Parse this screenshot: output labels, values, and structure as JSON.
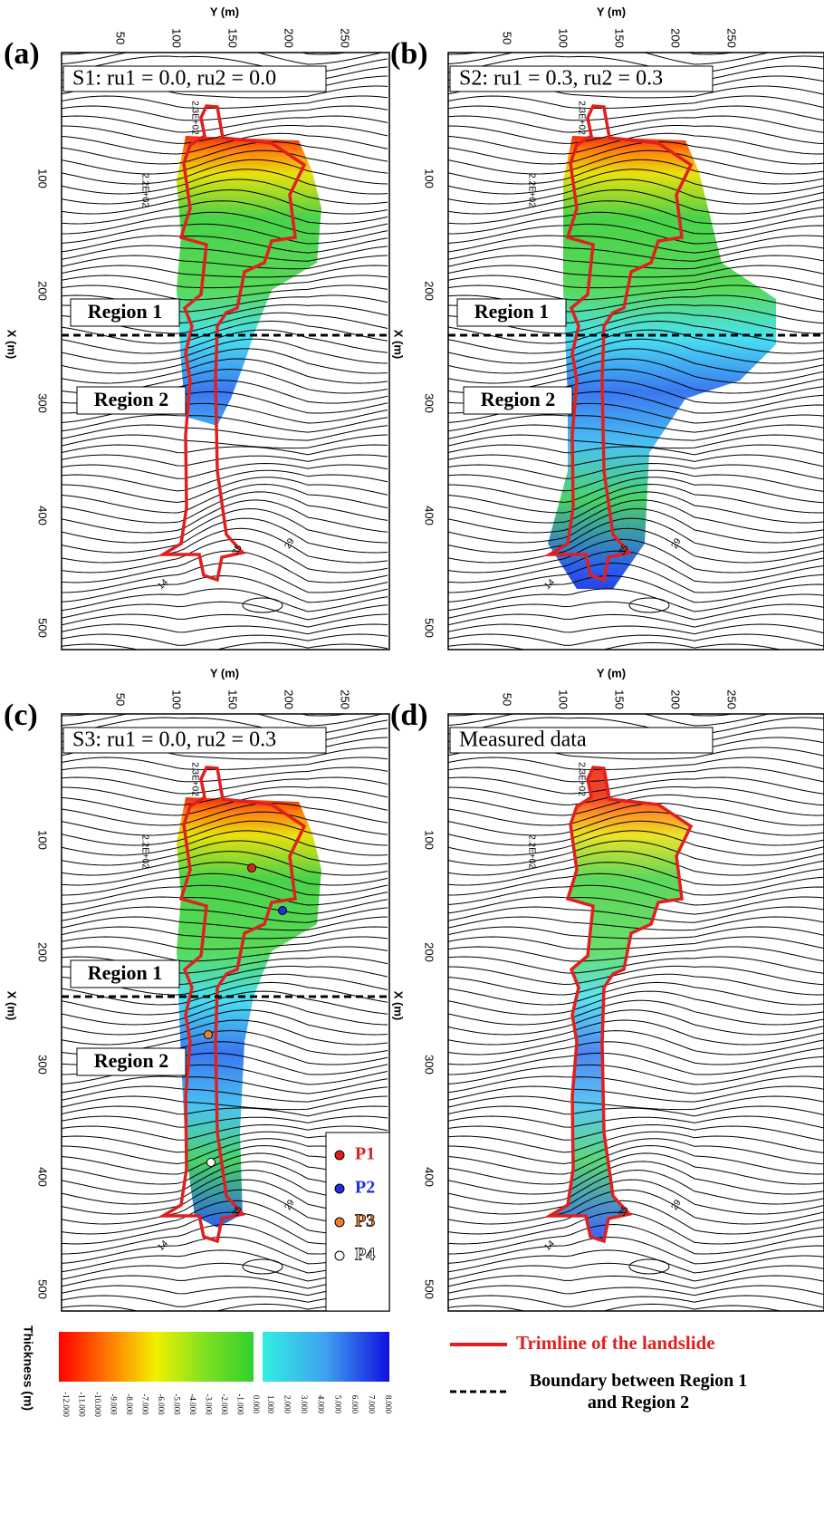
{
  "axes": {
    "top_label": "Y (m)",
    "left_label": "X (m)",
    "top_ticks": [
      "50",
      "100",
      "150",
      "200",
      "250"
    ],
    "left_ticks": [
      "100",
      "200",
      "300",
      "400",
      "500"
    ]
  },
  "panels": [
    {
      "letter": "(a)",
      "title": "S1: ru1 = 0.0, ru2 = 0.0"
    },
    {
      "letter": "(b)",
      "title": "S2: ru1 = 0.3, ru2 = 0.3"
    },
    {
      "letter": "(c)",
      "title": "S3: ru1 = 0.0, ru2 = 0.3"
    },
    {
      "letter": "(d)",
      "title": "Measured data"
    }
  ],
  "regions": [
    "Region 1",
    "Region 2"
  ],
  "contour_labels": [
    "2.3E+02",
    "2.2E+02",
    "29",
    "35",
    "14"
  ],
  "points": [
    {
      "label": "P1",
      "color": "#e02020"
    },
    {
      "label": "P2",
      "color": "#2030e0"
    },
    {
      "label": "P3",
      "color": "#f08030"
    },
    {
      "label": "P4",
      "color": "#ffffff"
    }
  ],
  "colorbar": {
    "label": "Thickness (m)",
    "ticks": [
      "-12.000",
      "-11.000",
      "-10.000",
      "-9.000",
      "-8.000",
      "-7.000",
      "-6.000",
      "-5.000",
      "-4.000",
      "-3.000",
      "-2.000",
      "-1.000",
      "0.000",
      "1.000",
      "2.000",
      "3.000",
      "4.000",
      "5.000",
      "6.000",
      "7.000",
      "8.000"
    ]
  },
  "legend": {
    "trimline": "Trimline of the landslide",
    "boundary": "Boundary between Region 1 and Region 2"
  }
}
